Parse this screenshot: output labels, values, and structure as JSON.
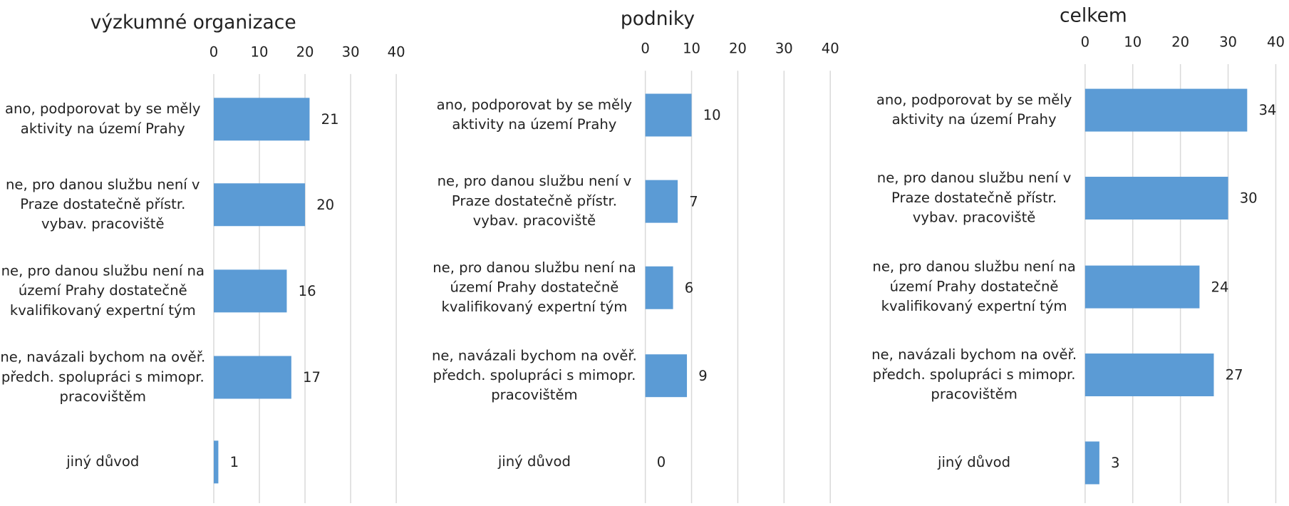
{
  "chart_data": [
    {
      "type": "bar",
      "orientation": "horizontal",
      "title": "výzkumné organizace",
      "color": "#5b9bd5",
      "categories": [
        "ano, podporovat by se měly aktivity na území Prahy",
        "ne, pro danou službu není v Praze dostatečně přístr. vybav. pracoviště",
        "ne, pro danou službu není na území Prahy dostatečně kvalifikovaný expertní tým",
        "ne, navázali bychom na ověř. předch. spolupráci s mimopr. pracovištěm",
        "jiný důvod"
      ],
      "values": [
        21,
        20,
        16,
        17,
        1
      ],
      "xlim": [
        0,
        40
      ],
      "xticks": [
        0,
        10,
        20,
        30,
        40
      ],
      "grid": true
    },
    {
      "type": "bar",
      "orientation": "horizontal",
      "title": "podniky",
      "color": "#5b9bd5",
      "categories": [
        "ano, podporovat by se měly aktivity na území Prahy",
        "ne, pro danou službu není v Praze dostatečně přístr. vybav. pracoviště",
        "ne, pro danou službu není na území Prahy dostatečně kvalifikovaný expertní tým",
        "ne, navázali bychom na ověř. předch. spolupráci s mimopr. pracovištěm",
        "jiný důvod"
      ],
      "values": [
        10,
        7,
        6,
        9,
        0
      ],
      "xlim": [
        0,
        40
      ],
      "xticks": [
        0,
        10,
        20,
        30,
        40
      ],
      "grid": true
    },
    {
      "type": "bar",
      "orientation": "horizontal",
      "title": "celkem",
      "color": "#5b9bd5",
      "categories": [
        "ano, podporovat by se měly aktivity na území Prahy",
        "ne, pro danou službu není v Praze dostatečně přístr. vybav. pracoviště",
        "ne, pro danou službu není na území Prahy dostatečně kvalifikovaný expertní tým",
        "ne, navázali bychom na ověř. předch. spolupráci s mimopr. pracovištěm",
        "jiný důvod"
      ],
      "values": [
        34,
        30,
        24,
        27,
        3
      ],
      "xlim": [
        0,
        40
      ],
      "xticks": [
        0,
        10,
        20,
        30,
        40
      ],
      "grid": true
    }
  ]
}
